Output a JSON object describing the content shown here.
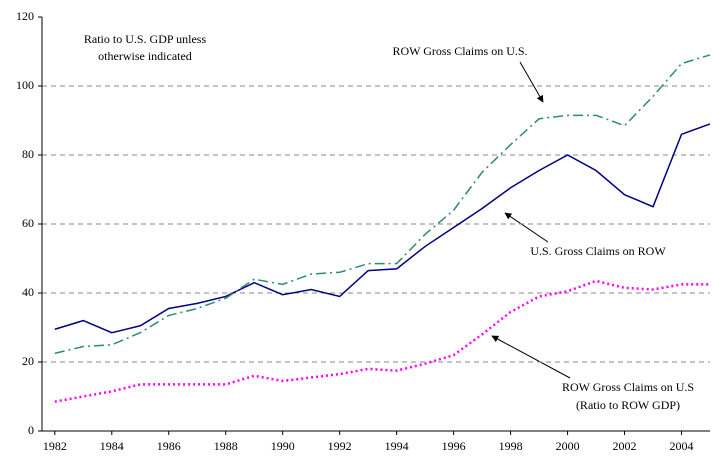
{
  "chart_data": {
    "type": "line",
    "annotations": [
      "Ratio to U.S. GDP unless",
      "otherwise indicated",
      "ROW Gross Claims on U.S.",
      "U.S. Gross Claims on ROW",
      "ROW Gross Claims on U.S",
      "(Ratio to ROW GDP)"
    ],
    "x": [
      1982,
      1983,
      1984,
      1985,
      1986,
      1987,
      1988,
      1989,
      1990,
      1991,
      1992,
      1993,
      1994,
      1995,
      1996,
      1997,
      1998,
      1999,
      2000,
      2001,
      2002,
      2003,
      2004,
      2005
    ],
    "series": [
      {
        "name": "U.S. Gross Claims on ROW",
        "color": "#000080",
        "dash": "solid",
        "values": [
          29.5,
          32,
          28.5,
          30.5,
          35.5,
          37,
          39,
          43,
          39.5,
          41,
          39,
          46.5,
          47,
          53.5,
          59,
          64.5,
          70.5,
          75.5,
          80,
          75.5,
          68.5,
          65,
          86,
          89
        ]
      },
      {
        "name": "ROW Gross Claims on U.S.",
        "color": "#2e8b6e",
        "dash": "dashdot",
        "values": [
          22.5,
          24.5,
          25,
          28.5,
          33.5,
          35.5,
          38.5,
          44,
          42.5,
          45.5,
          46,
          48.5,
          48.5,
          57,
          64,
          75,
          83,
          90.5,
          91.5,
          91.5,
          88.5,
          97,
          106.5,
          109
        ]
      },
      {
        "name": "ROW Gross Claims on U.S (Ratio to ROW GDP)",
        "color": "#ff00ff",
        "dash": "dot",
        "values": [
          8.5,
          10,
          11.5,
          13.5,
          13.5,
          13.5,
          13.5,
          16,
          14.5,
          15.5,
          16.5,
          18,
          17.5,
          19.5,
          22,
          28,
          34.5,
          39,
          40.5,
          43.5,
          41.5,
          41,
          42.5,
          42.5
        ]
      }
    ],
    "xlim": [
      1981.55,
      2005
    ],
    "xticks": [
      1982,
      1984,
      1986,
      1988,
      1990,
      1992,
      1994,
      1996,
      1998,
      2000,
      2002,
      2004
    ],
    "ylim": [
      0,
      120
    ],
    "yticks": [
      0,
      20,
      40,
      60,
      80,
      100,
      120
    ],
    "grid": true
  }
}
